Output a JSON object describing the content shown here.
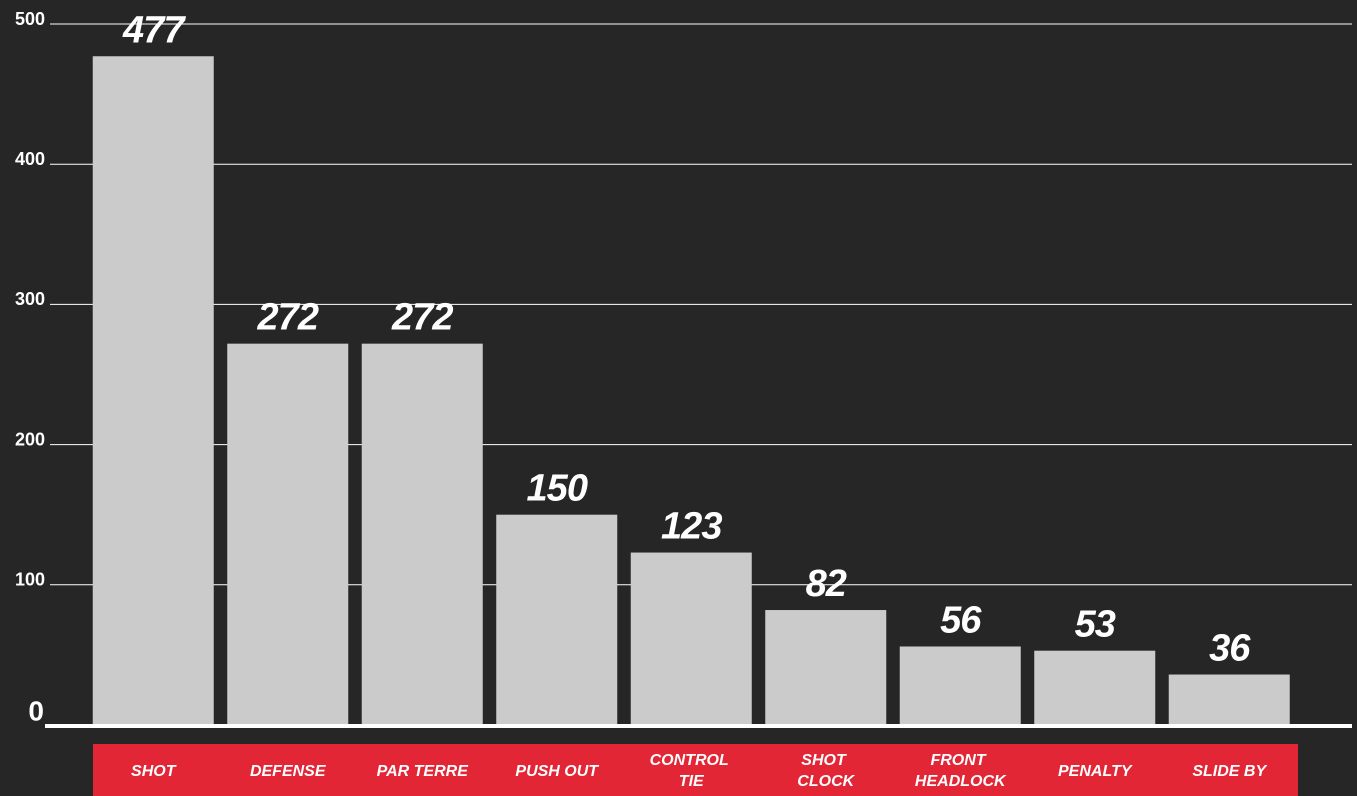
{
  "chart_data": {
    "type": "bar",
    "categories": [
      "SHOT",
      "DEFENSE",
      "PAR TERRE",
      "PUSH OUT",
      "CONTROL TIE",
      "SHOT CLOCK",
      "FRONT HEADLOCK",
      "PENALTY",
      "SLIDE BY"
    ],
    "values": [
      477,
      272,
      272,
      150,
      123,
      82,
      56,
      53,
      36
    ],
    "color": "#cbcbcb",
    "ylim": [
      0,
      500
    ],
    "yticks": [
      0,
      100,
      200,
      300,
      400,
      500
    ],
    "grid": true
  }
}
